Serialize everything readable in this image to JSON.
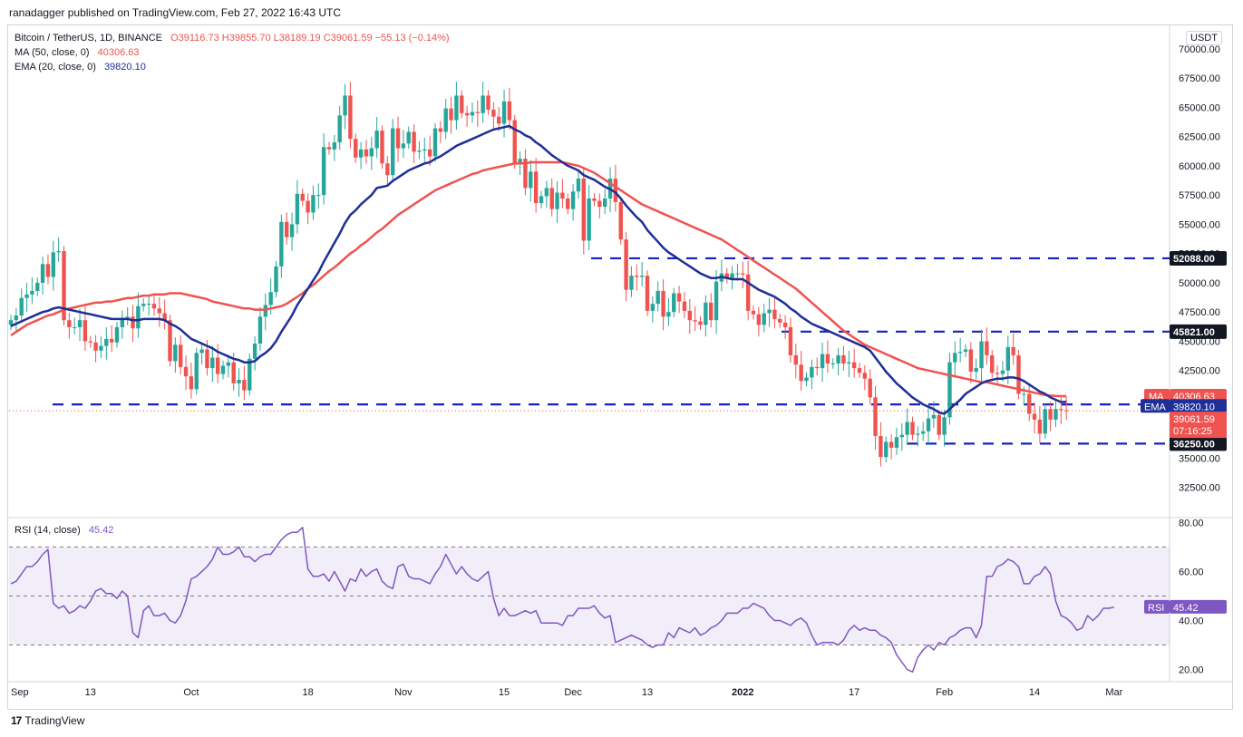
{
  "header": {
    "publisher": "ranadagger published on TradingView.com, Feb 27, 2022 16:43 UTC"
  },
  "legend": {
    "symbol": "Bitcoin / TetherUS, 1D, BINANCE",
    "open": "O39116.73",
    "high": "H39855.70",
    "low": "L38189.19",
    "close": "C39061.59",
    "change": "−55.13 (−0.14%)",
    "ma_label": "MA (50, close, 0)",
    "ma_value": "40306.63",
    "ema_label": "EMA (20, close, 0)",
    "ema_value": "39820.10",
    "rsi_label": "RSI (14, close)",
    "rsi_value": "45.42"
  },
  "currency_badge": "USDT",
  "footer": {
    "brand": "TradingView",
    "logo_text": "17"
  },
  "colors": {
    "up": "#26a69a",
    "down": "#ef5350",
    "ma": "#ef5350",
    "ema": "#1e2f97",
    "rsi": "#7e57c2",
    "level": "#1a1fbf"
  },
  "chart_data": [
    {
      "type": "candlestick",
      "title": "Bitcoin / TetherUS, 1D, BINANCE",
      "y_ticks": [
        "32500.00",
        "35000.00",
        "37500.00",
        "40000.00",
        "42500.00",
        "45000.00",
        "47500.00",
        "50000.00",
        "52500.00",
        "55000.00",
        "57500.00",
        "60000.00",
        "62500.00",
        "65000.00",
        "67500.00",
        "70000.00"
      ],
      "ylim": [
        30000,
        72000
      ],
      "x_ticks": [
        "Sep",
        "13",
        "Oct",
        "18",
        "Nov",
        "15",
        "Dec",
        "13",
        "2022",
        "17",
        "Feb",
        "14",
        "Mar"
      ],
      "horizontal_levels": [
        {
          "label": "52088.00",
          "value": 52088
        },
        {
          "label": "45821.00",
          "value": 45821
        },
        {
          "label": "39600.00",
          "value": 39600
        },
        {
          "label": "36250.00",
          "value": 36250
        }
      ],
      "price_tags": [
        {
          "label": "MA",
          "value": "40306.63"
        },
        {
          "label": "EMA",
          "value": "39820.10"
        },
        {
          "label": "39061.59",
          "value": "39061.59",
          "countdown": "07:16:25"
        }
      ],
      "series": [
        {
          "name": "MA (50, close, 0)",
          "kind": "line"
        },
        {
          "name": "EMA (20, close, 0)",
          "kind": "line"
        }
      ],
      "close": [
        46800,
        47200,
        48700,
        49000,
        49300,
        50000,
        51600,
        50500,
        52600,
        52700,
        46800,
        46200,
        46200,
        46800,
        45000,
        44900,
        44200,
        44600,
        45200,
        44900,
        46200,
        47000,
        47100,
        46100,
        48000,
        48200,
        48200,
        47800,
        47400,
        46800,
        43300,
        44700,
        42800,
        42000,
        40900,
        44000,
        44300,
        42700,
        43600,
        42200,
        42900,
        43200,
        41400,
        41700,
        40800,
        43500,
        44800,
        47100,
        48100,
        49200,
        51400,
        55200,
        53900,
        55000,
        57600,
        57000,
        56000,
        57500,
        57500,
        61600,
        61400,
        62000,
        64300,
        66000,
        62300,
        60700,
        61400,
        60800,
        61500,
        63000,
        60200,
        59200,
        63200,
        61500,
        61900,
        62900,
        61200,
        61300,
        61400,
        60800,
        63200,
        62900,
        64900,
        63900,
        66000,
        64500,
        64300,
        64600,
        64500,
        66000,
        64800,
        64200,
        63600,
        65500,
        63900,
        60200,
        60600,
        58100,
        59500,
        56800,
        57400,
        58100,
        56300,
        57700,
        57200,
        56300,
        57800,
        58900,
        53600,
        57200,
        57000,
        56500,
        57200,
        58900,
        56900,
        53700,
        49400,
        50600,
        50500,
        50600,
        47600,
        48200,
        49300,
        47100,
        47500,
        49100,
        48400,
        47600,
        46800,
        46700,
        46400,
        48300,
        46800,
        50100,
        50800,
        50400,
        50800,
        50800,
        50700,
        47600,
        47300,
        46400,
        47400,
        47700,
        46900,
        46600,
        46200,
        43800,
        43000,
        41600,
        41900,
        42800,
        42700,
        43900,
        43100,
        43100,
        43800,
        43100,
        43200,
        42700,
        42300,
        41800,
        40200,
        36900,
        35100,
        36400,
        35900,
        36800,
        37000,
        38100,
        37000,
        37100,
        37300,
        38400,
        38700,
        37000,
        38500,
        43200,
        44000,
        44100,
        44300,
        42400,
        42700,
        45000,
        43800,
        42300,
        42200,
        42500,
        44500,
        43800,
        40500,
        40500,
        38800,
        38300,
        37100,
        39200,
        38300,
        39200,
        39100,
        39060
      ],
      "ma50": [
        45500,
        45800,
        46100,
        46400,
        46600,
        46800,
        47000,
        47200,
        47300,
        47500,
        47700,
        47800,
        47900,
        48000,
        48100,
        48200,
        48300,
        48300,
        48400,
        48400,
        48500,
        48600,
        48700,
        48700,
        48800,
        48900,
        48900,
        49000,
        49000,
        49000,
        49100,
        49100,
        49100,
        49000,
        48900,
        48800,
        48700,
        48600,
        48400,
        48300,
        48200,
        48100,
        48000,
        47900,
        47800,
        47800,
        47700,
        47700,
        47700,
        47800,
        47900,
        48000,
        48200,
        48500,
        48800,
        49100,
        49500,
        49800,
        50200,
        50600,
        51000,
        51300,
        51700,
        52100,
        52500,
        52800,
        53200,
        53500,
        53900,
        54300,
        54600,
        55000,
        55400,
        55800,
        56100,
        56400,
        56700,
        57000,
        57300,
        57600,
        57900,
        58100,
        58300,
        58500,
        58700,
        58900,
        59100,
        59300,
        59400,
        59600,
        59700,
        59800,
        59900,
        60000,
        60100,
        60200,
        60200,
        60200,
        60300,
        60300,
        60300,
        60300,
        60300,
        60300,
        60300,
        60200,
        60100,
        60000,
        59800,
        59600,
        59400,
        59100,
        58800,
        58500,
        58200,
        57900,
        57600,
        57300,
        57000,
        56700,
        56500,
        56300,
        56100,
        55900,
        55700,
        55500,
        55300,
        55100,
        54900,
        54700,
        54500,
        54300,
        54100,
        53900,
        53700,
        53400,
        53100,
        52800,
        52500,
        52200,
        51900,
        51600,
        51300,
        51000,
        50700,
        50400,
        50100,
        49800,
        49500,
        49100,
        48700,
        48300,
        47900,
        47500,
        47100,
        46700,
        46300,
        45900,
        45600,
        45300,
        45000,
        44700,
        44500,
        44300,
        44100,
        43900,
        43700,
        43500,
        43300,
        43100,
        42900,
        42700,
        42600,
        42500,
        42400,
        42300,
        42200,
        42100,
        42000,
        41900,
        41800,
        41700,
        41600,
        41500,
        41500,
        41400,
        41300,
        41200,
        41100,
        41000,
        40900,
        40800,
        40700,
        40600,
        40500,
        40400,
        40350,
        40320,
        40310,
        40306
      ],
      "ema20": [
        46300,
        46500,
        46700,
        46900,
        47100,
        47300,
        47500,
        47600,
        47800,
        47900,
        47800,
        47700,
        47600,
        47500,
        47400,
        47300,
        47200,
        47100,
        47000,
        46900,
        46900,
        46900,
        46900,
        46800,
        46800,
        46900,
        46900,
        46900,
        46900,
        46800,
        46500,
        46300,
        46000,
        45600,
        45200,
        45000,
        44800,
        44600,
        44400,
        44100,
        43900,
        43700,
        43500,
        43400,
        43200,
        43200,
        43300,
        43700,
        44000,
        44400,
        45000,
        45800,
        46500,
        47200,
        48100,
        48800,
        49500,
        50200,
        50900,
        51800,
        52600,
        53400,
        54200,
        55100,
        55800,
        56200,
        56700,
        57100,
        57500,
        58100,
        58200,
        58300,
        58700,
        59000,
        59300,
        59600,
        59800,
        60000,
        60200,
        60300,
        60600,
        60800,
        61100,
        61400,
        61700,
        61900,
        62100,
        62300,
        62500,
        62700,
        62900,
        63100,
        63200,
        63300,
        63400,
        63100,
        62900,
        62600,
        62400,
        62000,
        61700,
        61300,
        60900,
        60600,
        60300,
        60000,
        59800,
        59600,
        59200,
        59000,
        58800,
        58500,
        58200,
        58000,
        57700,
        57200,
        56600,
        56100,
        55600,
        55200,
        54500,
        54000,
        53500,
        53000,
        52600,
        52300,
        52000,
        51700,
        51400,
        51100,
        50800,
        50600,
        50400,
        50400,
        50500,
        50400,
        50300,
        50300,
        50300,
        50000,
        49700,
        49400,
        49200,
        49000,
        48800,
        48500,
        48200,
        47800,
        47500,
        47100,
        46800,
        46500,
        46300,
        46100,
        45900,
        45700,
        45500,
        45300,
        45100,
        44900,
        44700,
        44500,
        44200,
        43600,
        43000,
        42400,
        41900,
        41400,
        41000,
        40600,
        40200,
        39900,
        39600,
        39400,
        39200,
        38900,
        38800,
        39200,
        39600,
        40000,
        40500,
        40800,
        41100,
        41400,
        41600,
        41700,
        41800,
        41800,
        41900,
        41900,
        41800,
        41600,
        41300,
        41000,
        40700,
        40500,
        40200,
        40000,
        39800,
        39820
      ]
    },
    {
      "type": "line",
      "title": "RSI (14, close)",
      "ylim": [
        15,
        82
      ],
      "y_ticks": [
        "20.00",
        "40.00",
        "60.00",
        "80.00"
      ],
      "bands": [
        30,
        50,
        70
      ],
      "values": [
        55,
        56,
        59,
        62,
        62,
        64,
        67,
        69,
        47,
        45,
        46,
        43,
        44,
        46,
        45,
        48,
        52,
        53,
        51,
        51,
        49,
        52,
        50,
        35,
        33,
        44,
        46,
        42,
        42,
        43,
        40,
        39,
        42,
        48,
        57,
        58,
        60,
        62,
        65,
        70,
        67,
        67,
        68,
        70,
        66,
        66,
        64,
        66,
        67,
        67,
        70,
        73,
        75,
        76,
        76,
        78,
        61,
        58,
        58,
        59,
        56,
        60,
        56,
        52,
        57,
        56,
        61,
        58,
        60,
        61,
        56,
        54,
        53,
        62,
        63,
        58,
        57,
        57,
        56,
        55,
        59,
        62,
        67,
        63,
        59,
        62,
        59,
        57,
        56,
        58,
        60,
        49,
        42,
        45,
        42,
        42,
        43,
        44,
        43,
        44,
        39,
        39,
        39,
        39,
        38,
        42,
        42,
        45,
        45,
        45,
        46,
        43,
        41,
        42,
        31,
        32,
        33,
        34,
        33,
        32,
        30,
        29,
        30,
        30,
        35,
        33,
        37,
        36,
        35,
        37,
        34,
        35,
        37,
        38,
        40,
        43,
        43,
        43,
        45,
        45,
        47,
        46,
        45,
        42,
        40,
        40,
        39,
        38,
        40,
        41,
        39,
        34,
        30,
        31,
        31,
        31,
        30,
        32,
        36,
        38,
        36,
        37,
        36,
        36,
        34,
        33,
        31,
        26,
        23,
        20,
        19,
        25,
        28,
        30,
        28,
        31,
        30,
        33,
        34,
        36,
        37,
        37,
        33,
        38,
        58,
        58,
        62,
        63,
        65,
        64,
        62,
        55,
        55,
        58,
        59,
        62,
        59,
        48,
        42,
        41,
        39,
        36,
        37,
        42,
        40,
        42,
        45,
        45,
        45.42
      ]
    }
  ]
}
